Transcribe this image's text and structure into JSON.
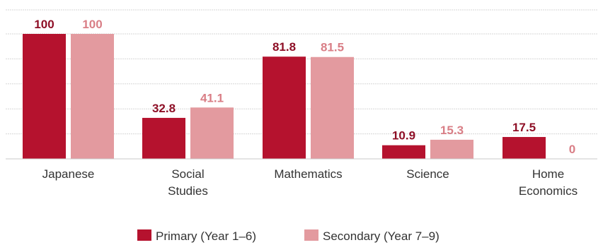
{
  "chart_data": {
    "type": "bar",
    "categories": [
      [
        "Japanese"
      ],
      [
        "Social",
        "Studies"
      ],
      [
        "Mathematics"
      ],
      [
        "Science"
      ],
      [
        "Home",
        "Economics"
      ]
    ],
    "series": [
      {
        "name": "Primary (Year 1–6)",
        "values": [
          100,
          32.8,
          81.8,
          10.9,
          17.5
        ],
        "labels": [
          "100",
          "32.8",
          "81.8",
          "10.9",
          "17.5"
        ],
        "color": "#b5122e",
        "label_color": "#8e0f26"
      },
      {
        "name": "Secondary (Year 7–9)",
        "values": [
          100,
          41.1,
          81.5,
          15.3,
          0
        ],
        "labels": [
          "100",
          "41.1",
          "81.5",
          "15.3",
          "0"
        ],
        "color": "#e39a9f",
        "label_color": "#d97e86"
      }
    ],
    "ylim": [
      0,
      100
    ],
    "grid": true,
    "legend": "bottom-center"
  }
}
